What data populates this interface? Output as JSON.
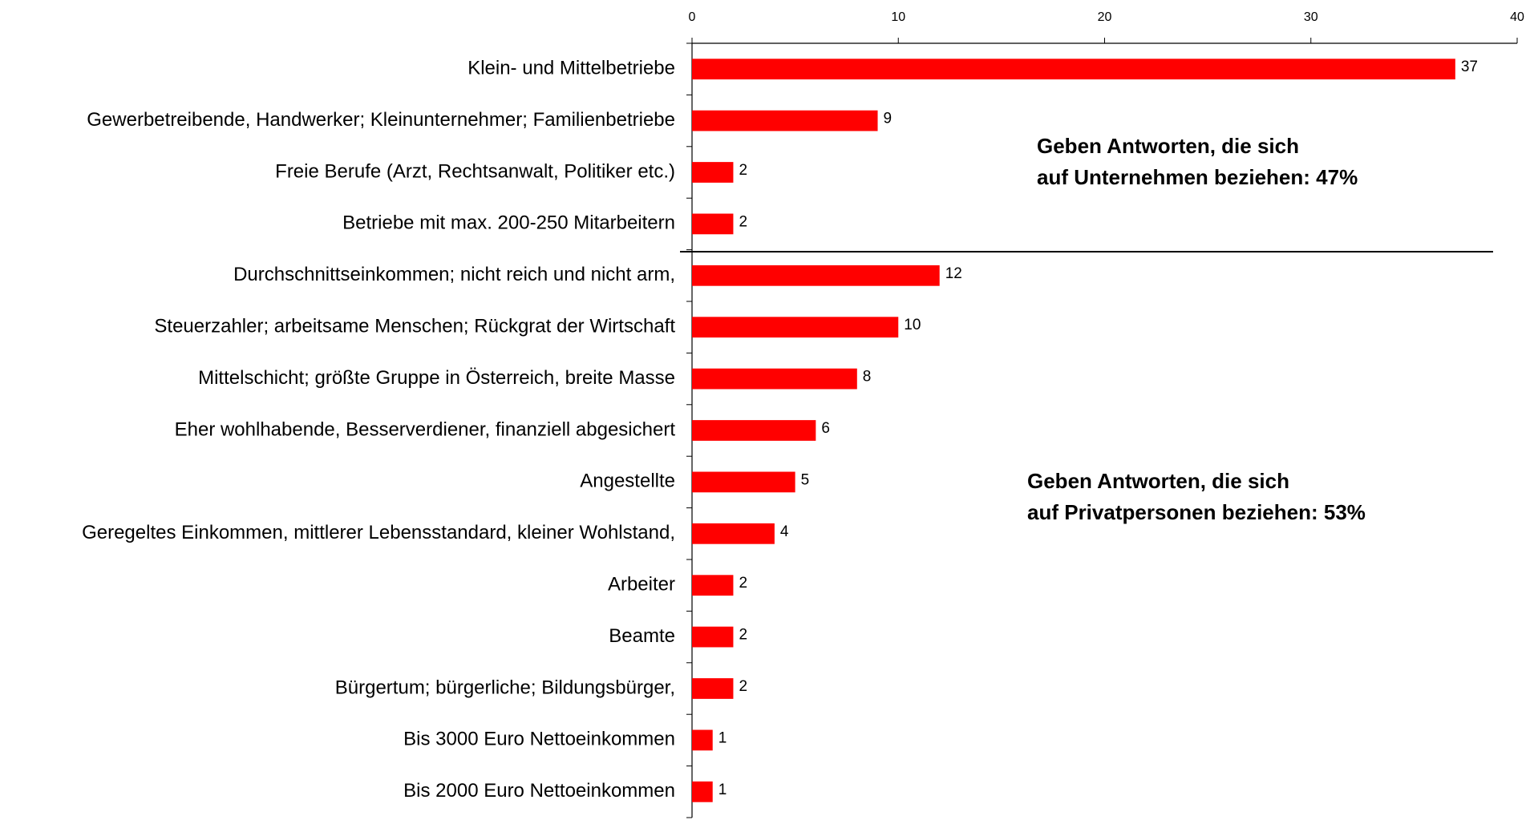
{
  "chart_data": {
    "type": "barh",
    "categories": [
      "Klein- und Mittelbetriebe",
      "Gewerbetreibende, Handwerker; Kleinunternehmer; Familienbetriebe",
      "Freie Berufe (Arzt, Rechtsanwalt, Politiker etc.)",
      "Betriebe mit max. 200-250 Mitarbeitern",
      "Durchschnittseinkommen; nicht reich und nicht arm,",
      "Steuerzahler; arbeitsame Menschen; Rückgrat der Wirtschaft",
      "Mittelschicht; größte Gruppe in Österreich, breite Masse",
      "Eher wohlhabende, Besserverdiener, finanziell abgesichert",
      "Angestellte",
      "Geregeltes Einkommen, mittlerer Lebensstandard, kleiner Wohlstand,",
      "Arbeiter",
      "Beamte",
      "Bürgertum; bürgerliche; Bildungsbürger,",
      "Bis 3000 Euro Nettoeinkommen",
      "Bis 2000 Euro Nettoeinkommen"
    ],
    "values": [
      37,
      9,
      2,
      2,
      12,
      10,
      8,
      6,
      5,
      4,
      2,
      2,
      2,
      1,
      1
    ],
    "color": "#ff0000",
    "xlim": [
      0,
      40
    ],
    "xticks": [
      0,
      10,
      20,
      30,
      40
    ],
    "annotations": [
      {
        "lines": [
          "Geben Antworten, die sich",
          "auf Unternehmen beziehen: 47%"
        ]
      },
      {
        "lines": [
          "Geben Antworten, die sich",
          "auf Privatpersonen beziehen: 53%"
        ]
      }
    ]
  }
}
